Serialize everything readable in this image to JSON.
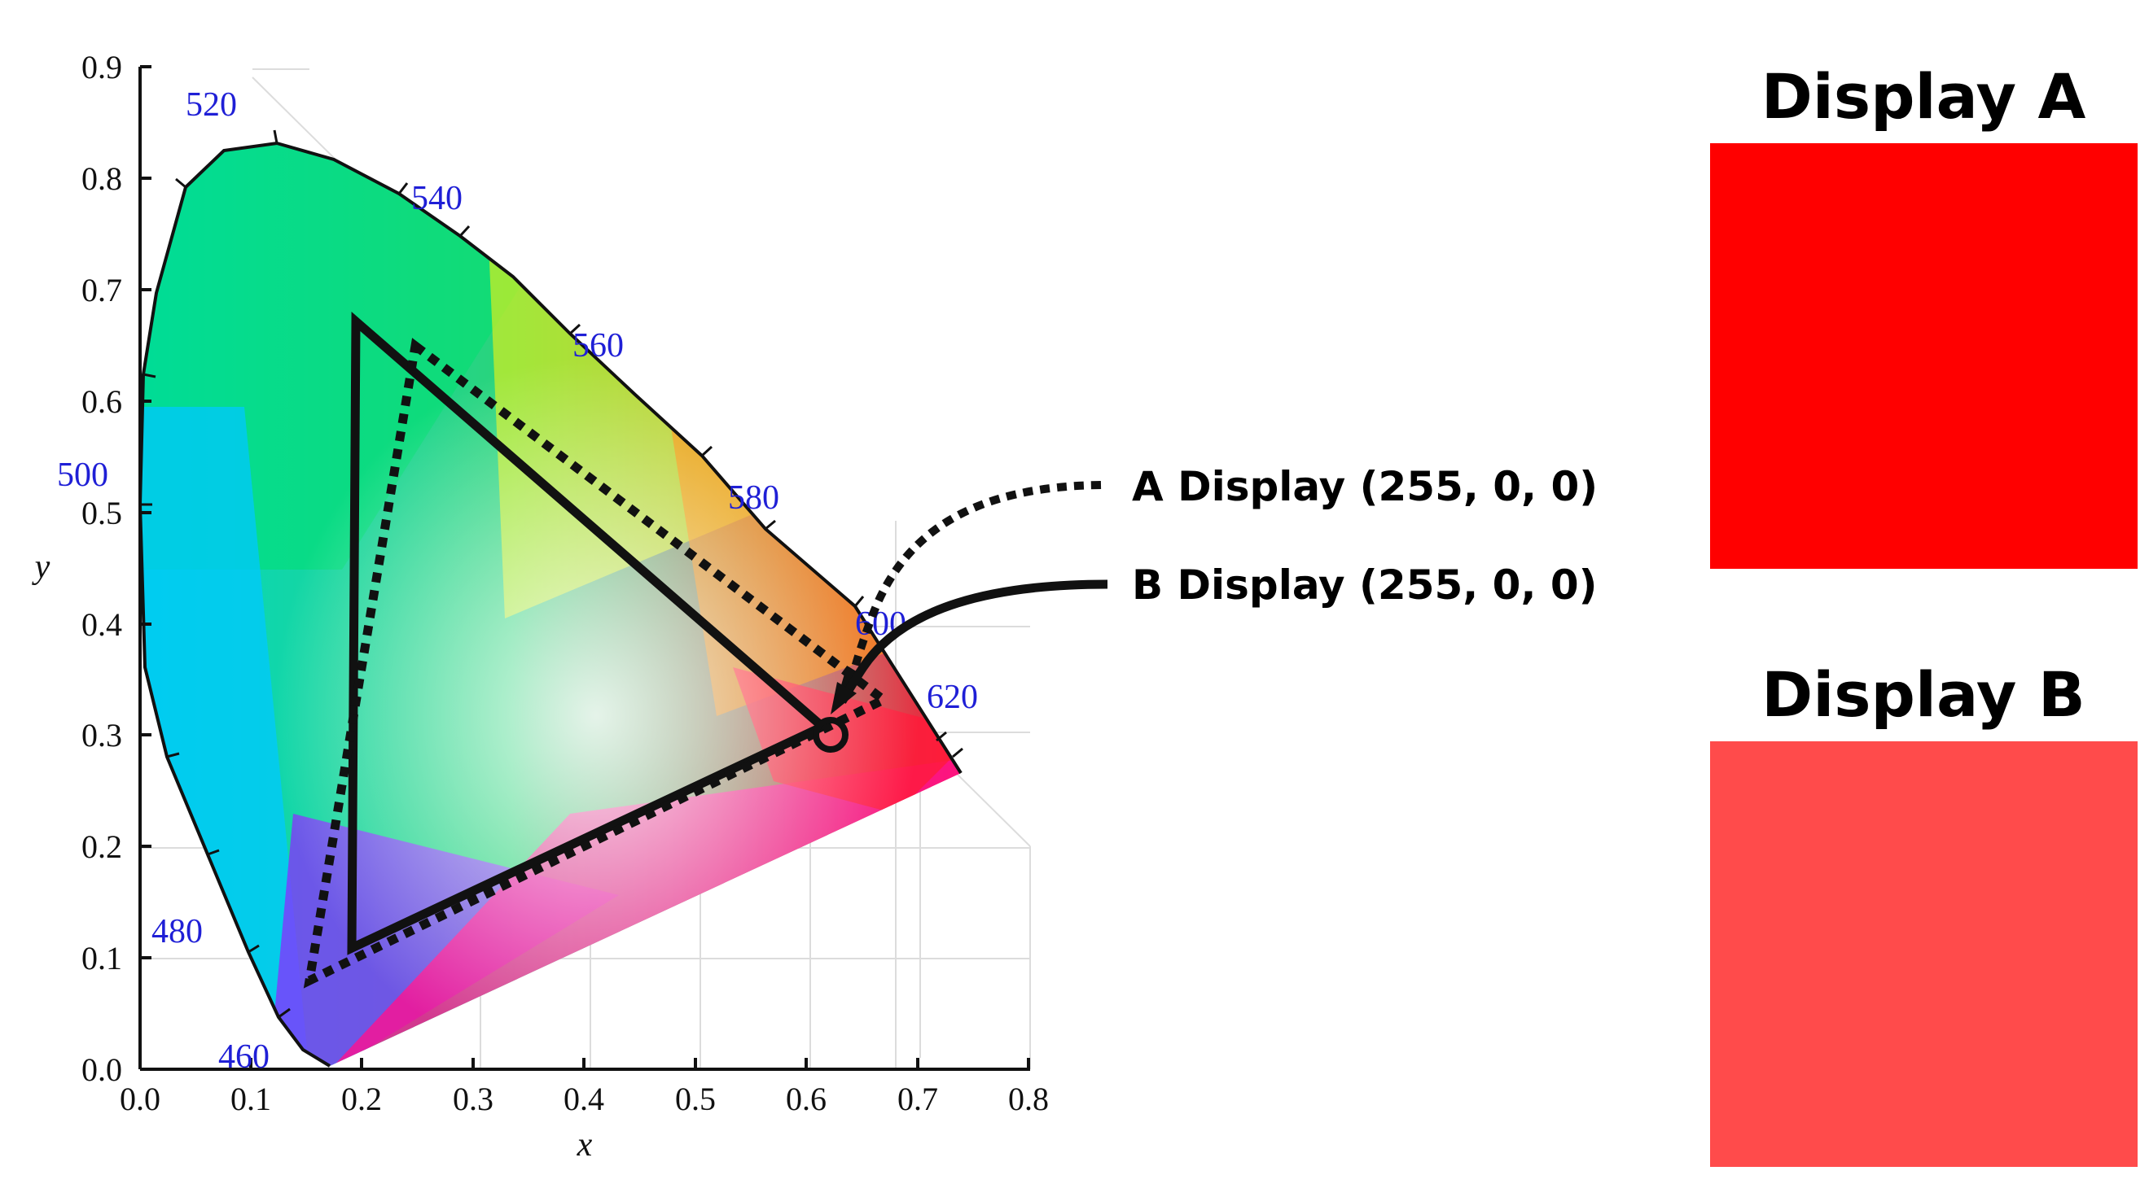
{
  "diagram": {
    "x_axis": {
      "label": "x",
      "ticks": [
        "0.0",
        "0.1",
        "0.2",
        "0.3",
        "0.4",
        "0.5",
        "0.6",
        "0.7",
        "0.8"
      ]
    },
    "y_axis": {
      "label": "y",
      "ticks": [
        "0.0",
        "0.1",
        "0.2",
        "0.3",
        "0.4",
        "0.5",
        "0.6",
        "0.7",
        "0.8",
        "0.9"
      ]
    },
    "wavelength_labels": [
      "460",
      "480",
      "500",
      "520",
      "540",
      "560",
      "580",
      "600",
      "620"
    ],
    "annotations": {
      "a": "A Display (255, 0, 0)",
      "b": "B Display (255, 0, 0)"
    }
  },
  "panels": {
    "display_a": {
      "title": "Display A",
      "color": "#ff0000"
    },
    "display_b": {
      "title": "Display B",
      "color": "#ff4b4b"
    }
  }
}
